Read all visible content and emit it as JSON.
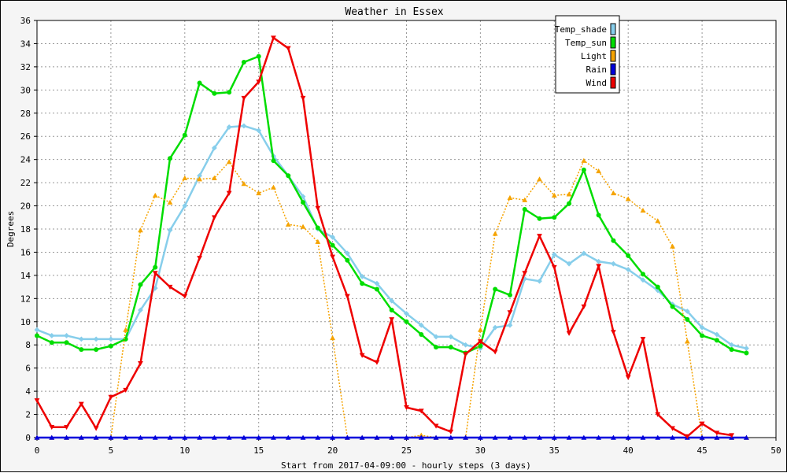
{
  "chart_data": {
    "type": "line",
    "title": "Weather in Essex",
    "xlabel": "Start from 2017-04-09:00 - hourly steps (3 days)",
    "ylabel": "Degrees",
    "xlim": [
      0,
      50
    ],
    "ylim": [
      0,
      36
    ],
    "xticks": [
      0,
      5,
      10,
      15,
      20,
      25,
      30,
      35,
      40,
      45,
      50
    ],
    "yticks": [
      0,
      2,
      4,
      6,
      8,
      10,
      12,
      14,
      16,
      18,
      20,
      22,
      24,
      26,
      28,
      30,
      32,
      34,
      36
    ],
    "grid": true,
    "legend_position": "top-right",
    "x": [
      0,
      1,
      2,
      3,
      4,
      5,
      6,
      7,
      8,
      9,
      10,
      11,
      12,
      13,
      14,
      15,
      16,
      17,
      18,
      19,
      20,
      21,
      22,
      23,
      24,
      25,
      26,
      27,
      28,
      29,
      30,
      31,
      32,
      33,
      34,
      35,
      36,
      37,
      38,
      39,
      40,
      41,
      42,
      43,
      44,
      45,
      46,
      47,
      48
    ],
    "series": [
      {
        "name": "Temp_shade",
        "color": "#87ceeb",
        "style": "solid",
        "marker": "diamond",
        "values": [
          9.3,
          8.8,
          8.8,
          8.5,
          8.5,
          8.5,
          8.5,
          11.0,
          12.9,
          17.9,
          20.0,
          22.6,
          25.0,
          26.8,
          26.9,
          26.5,
          24.3,
          22.6,
          20.8,
          18.0,
          17.3,
          15.9,
          13.9,
          13.3,
          11.8,
          10.7,
          9.7,
          8.7,
          8.7,
          8.0,
          7.7,
          9.5,
          9.7,
          13.7,
          13.5,
          15.8,
          15.0,
          15.9,
          15.2,
          15.0,
          14.5,
          13.6,
          12.7,
          11.5,
          10.9,
          9.5,
          8.9,
          8.0,
          7.7
        ]
      },
      {
        "name": "Temp_sun",
        "color": "#00dd00",
        "style": "solid",
        "marker": "circle",
        "values": [
          8.8,
          8.2,
          8.2,
          7.6,
          7.6,
          7.9,
          8.5,
          13.2,
          14.7,
          24.1,
          26.1,
          30.6,
          29.7,
          29.8,
          32.4,
          32.9,
          23.9,
          22.6,
          20.3,
          18.1,
          16.6,
          15.3,
          13.3,
          12.8,
          11.0,
          10.0,
          8.9,
          7.8,
          7.8,
          7.3,
          7.9,
          12.8,
          12.3,
          19.7,
          18.9,
          19.0,
          20.2,
          23.1,
          19.2,
          17.0,
          15.7,
          14.1,
          13.0,
          11.3,
          10.2,
          8.8,
          8.4,
          7.6,
          7.3
        ]
      },
      {
        "name": "Light",
        "color": "#f5a300",
        "style": "dotted",
        "marker": "triangle-up",
        "values": [
          0,
          0,
          0,
          0,
          0,
          0,
          9.3,
          17.9,
          20.9,
          20.3,
          22.4,
          22.3,
          22.4,
          23.8,
          21.9,
          21.1,
          21.6,
          18.4,
          18.2,
          16.9,
          8.6,
          0,
          0,
          0,
          0,
          0,
          0.2,
          0,
          0,
          0,
          9.3,
          17.6,
          20.7,
          20.5,
          22.3,
          20.9,
          21.0,
          23.9,
          23.0,
          21.1,
          20.6,
          19.6,
          18.7,
          16.5,
          8.3,
          0,
          0,
          0,
          0
        ]
      },
      {
        "name": "Rain",
        "color": "#0000dd",
        "style": "solid",
        "marker": "triangle-up",
        "values": [
          0,
          0,
          0,
          0,
          0,
          0,
          0,
          0,
          0,
          0,
          0,
          0,
          0,
          0,
          0,
          0,
          0,
          0,
          0,
          0,
          0,
          0,
          0,
          0,
          0,
          0,
          0,
          0,
          0,
          0,
          0,
          0,
          0,
          0,
          0,
          0,
          0,
          0,
          0,
          0,
          0,
          0,
          0,
          0,
          0,
          0,
          0,
          0,
          0
        ]
      },
      {
        "name": "Wind",
        "color": "#ee0000",
        "style": "solid",
        "marker": "triangle-down",
        "values": [
          3.2,
          0.9,
          0.9,
          2.9,
          0.8,
          3.5,
          4.1,
          6.4,
          14.2,
          13.0,
          12.2,
          15.5,
          19.0,
          21.1,
          29.3,
          30.7,
          34.5,
          33.6,
          29.3,
          19.8,
          15.6,
          12.2,
          7.1,
          6.5,
          10.2,
          2.6,
          2.3,
          1.0,
          0.5,
          7.2,
          8.3,
          7.4,
          10.8,
          14.2,
          17.4,
          14.7,
          9.0,
          11.3,
          14.8,
          9.1,
          5.2,
          8.5,
          2.0,
          0.8,
          0.1,
          1.2,
          0.4,
          0.2,
          null
        ]
      }
    ]
  }
}
